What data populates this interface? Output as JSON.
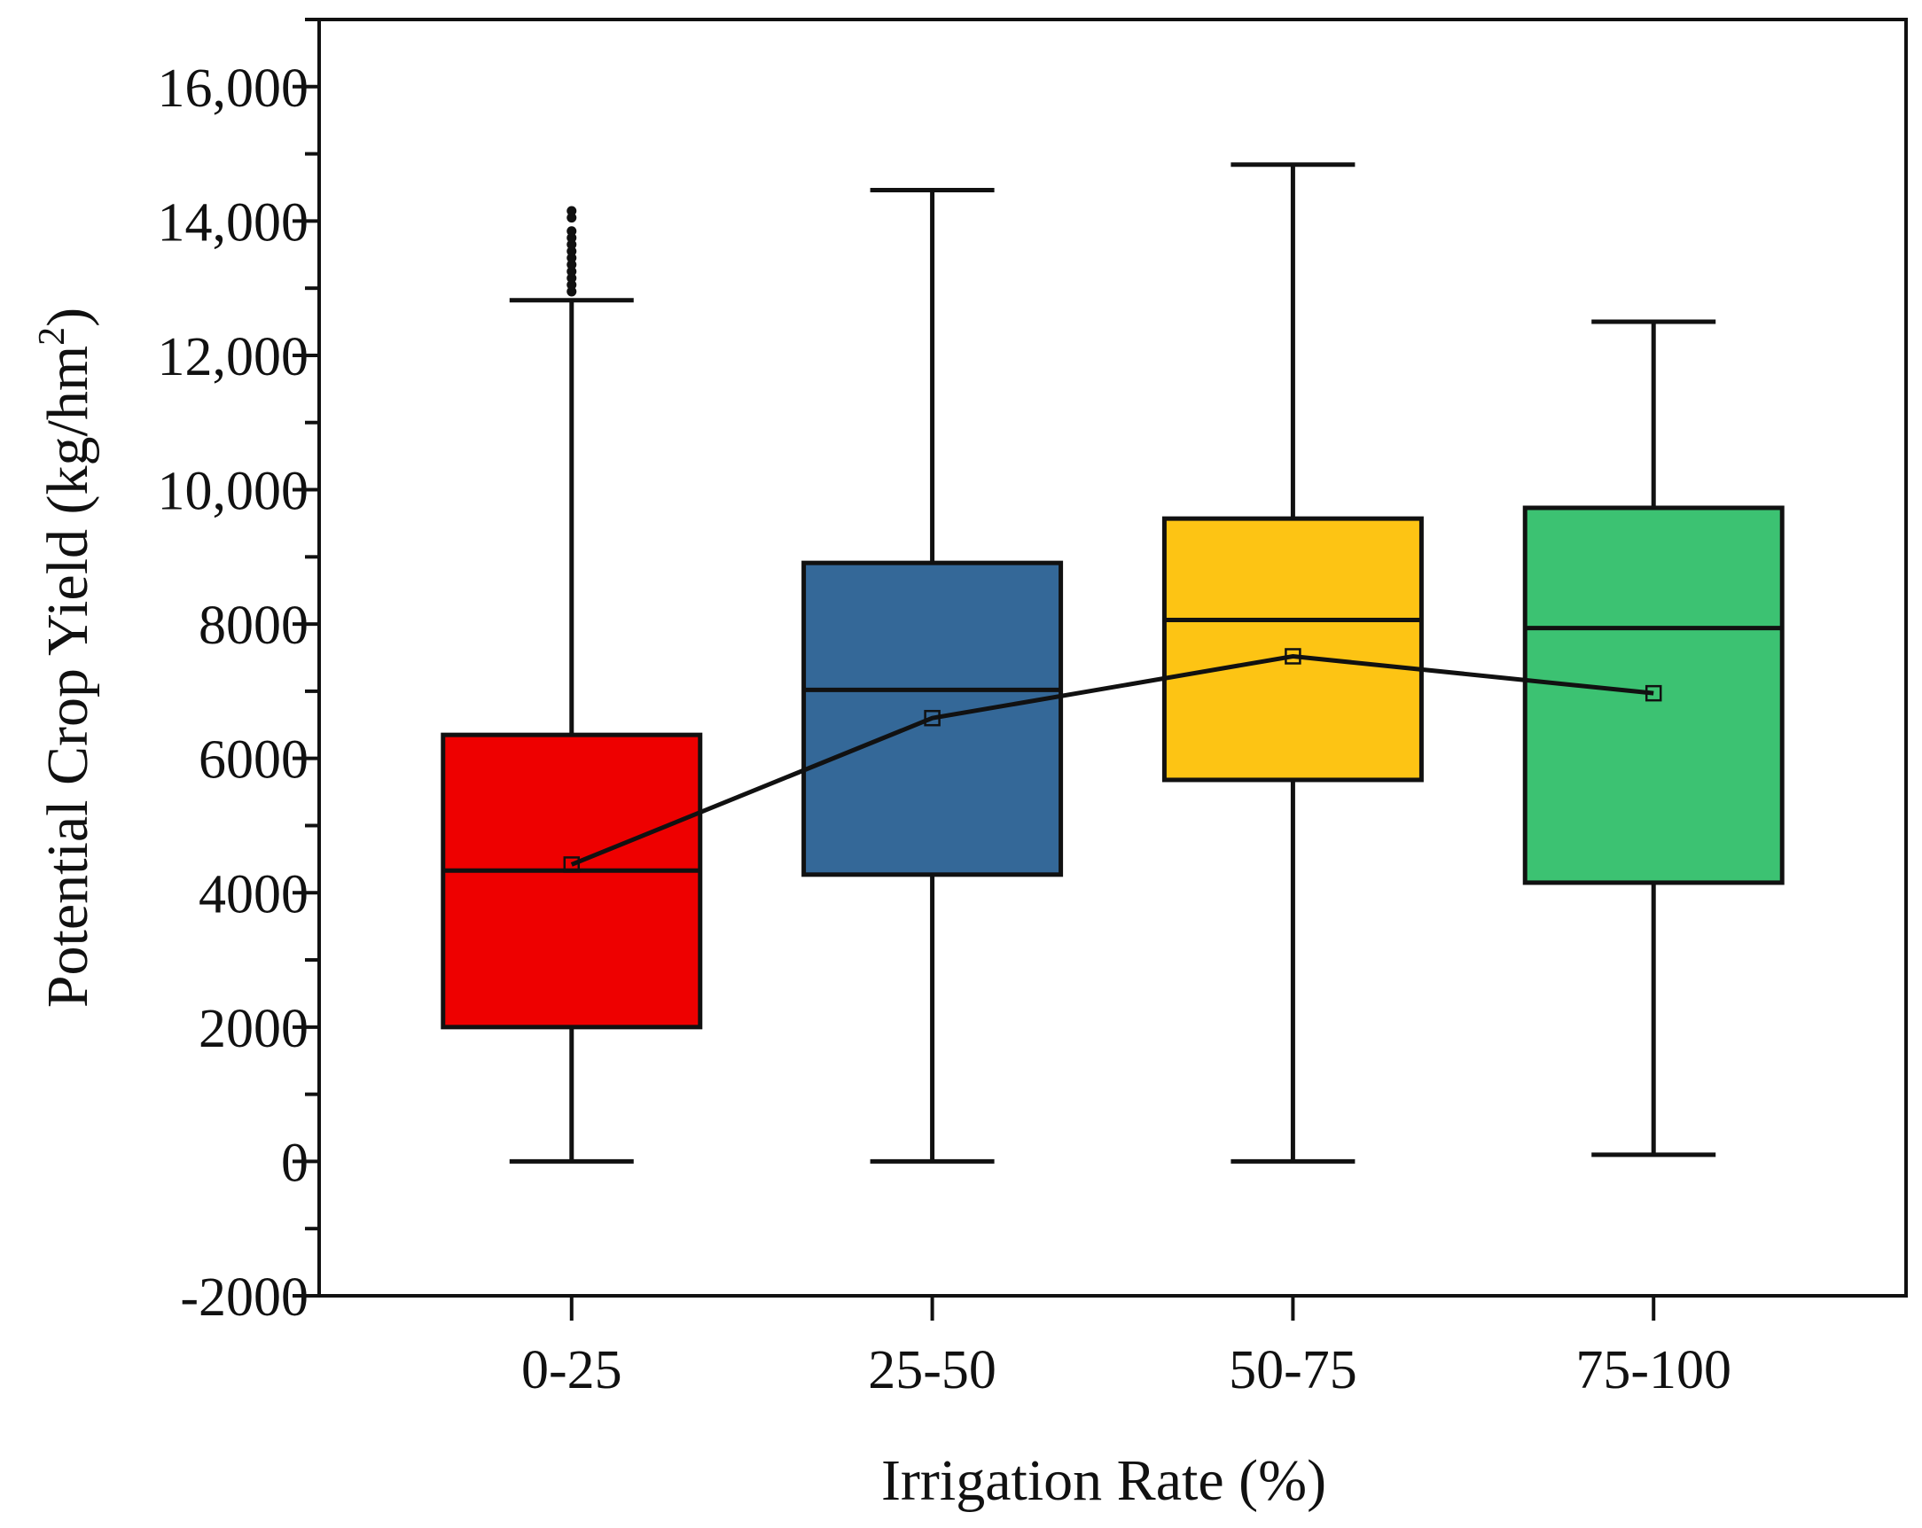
{
  "chart_data": {
    "type": "box",
    "title": "",
    "xlabel": "Irrigation Rate (%)",
    "ylabel": "Potential Crop Yield (kg/hm",
    "ylabel_sup": "2",
    "ylabel_close": ")",
    "ylim": [
      -2000,
      17000
    ],
    "yticks": [
      {
        "value": -2000,
        "label": "-2000"
      },
      {
        "value": 0,
        "label": "0"
      },
      {
        "value": 2000,
        "label": "2000"
      },
      {
        "value": 4000,
        "label": "4000"
      },
      {
        "value": 6000,
        "label": "6000"
      },
      {
        "value": 8000,
        "label": "8000"
      },
      {
        "value": 10000,
        "label": "10,000"
      },
      {
        "value": 12000,
        "label": "12,000"
      },
      {
        "value": 14000,
        "label": "14,000"
      },
      {
        "value": 16000,
        "label": "16,000"
      }
    ],
    "categories": [
      "0-25",
      "25-50",
      "50-75",
      "75-100"
    ],
    "boxes": [
      {
        "category": "0-25",
        "whisker_low": 0,
        "q1": 2000,
        "median": 4330,
        "q3": 6350,
        "whisker_high": 12820,
        "mean": 4420,
        "color": "#ee0000",
        "outliers": [
          12950,
          13050,
          13150,
          13250,
          13350,
          13450,
          13550,
          13650,
          13750,
          13850,
          14050,
          14150
        ]
      },
      {
        "category": "25-50",
        "whisker_low": 0,
        "q1": 4270,
        "median": 7020,
        "q3": 8910,
        "whisker_high": 14460,
        "mean": 6600,
        "color": "#346898",
        "outliers": []
      },
      {
        "category": "50-75",
        "whisker_low": 0,
        "q1": 5680,
        "median": 8060,
        "q3": 9570,
        "whisker_high": 14840,
        "mean": 7520,
        "color": "#fdc414",
        "outliers": []
      },
      {
        "category": "75-100",
        "whisker_low": 100,
        "q1": 4150,
        "median": 7940,
        "q3": 9730,
        "whisker_high": 12500,
        "mean": 6970,
        "color": "#3cc272",
        "outliers": []
      }
    ],
    "mean_line": true,
    "grid": false,
    "legend": "none"
  }
}
